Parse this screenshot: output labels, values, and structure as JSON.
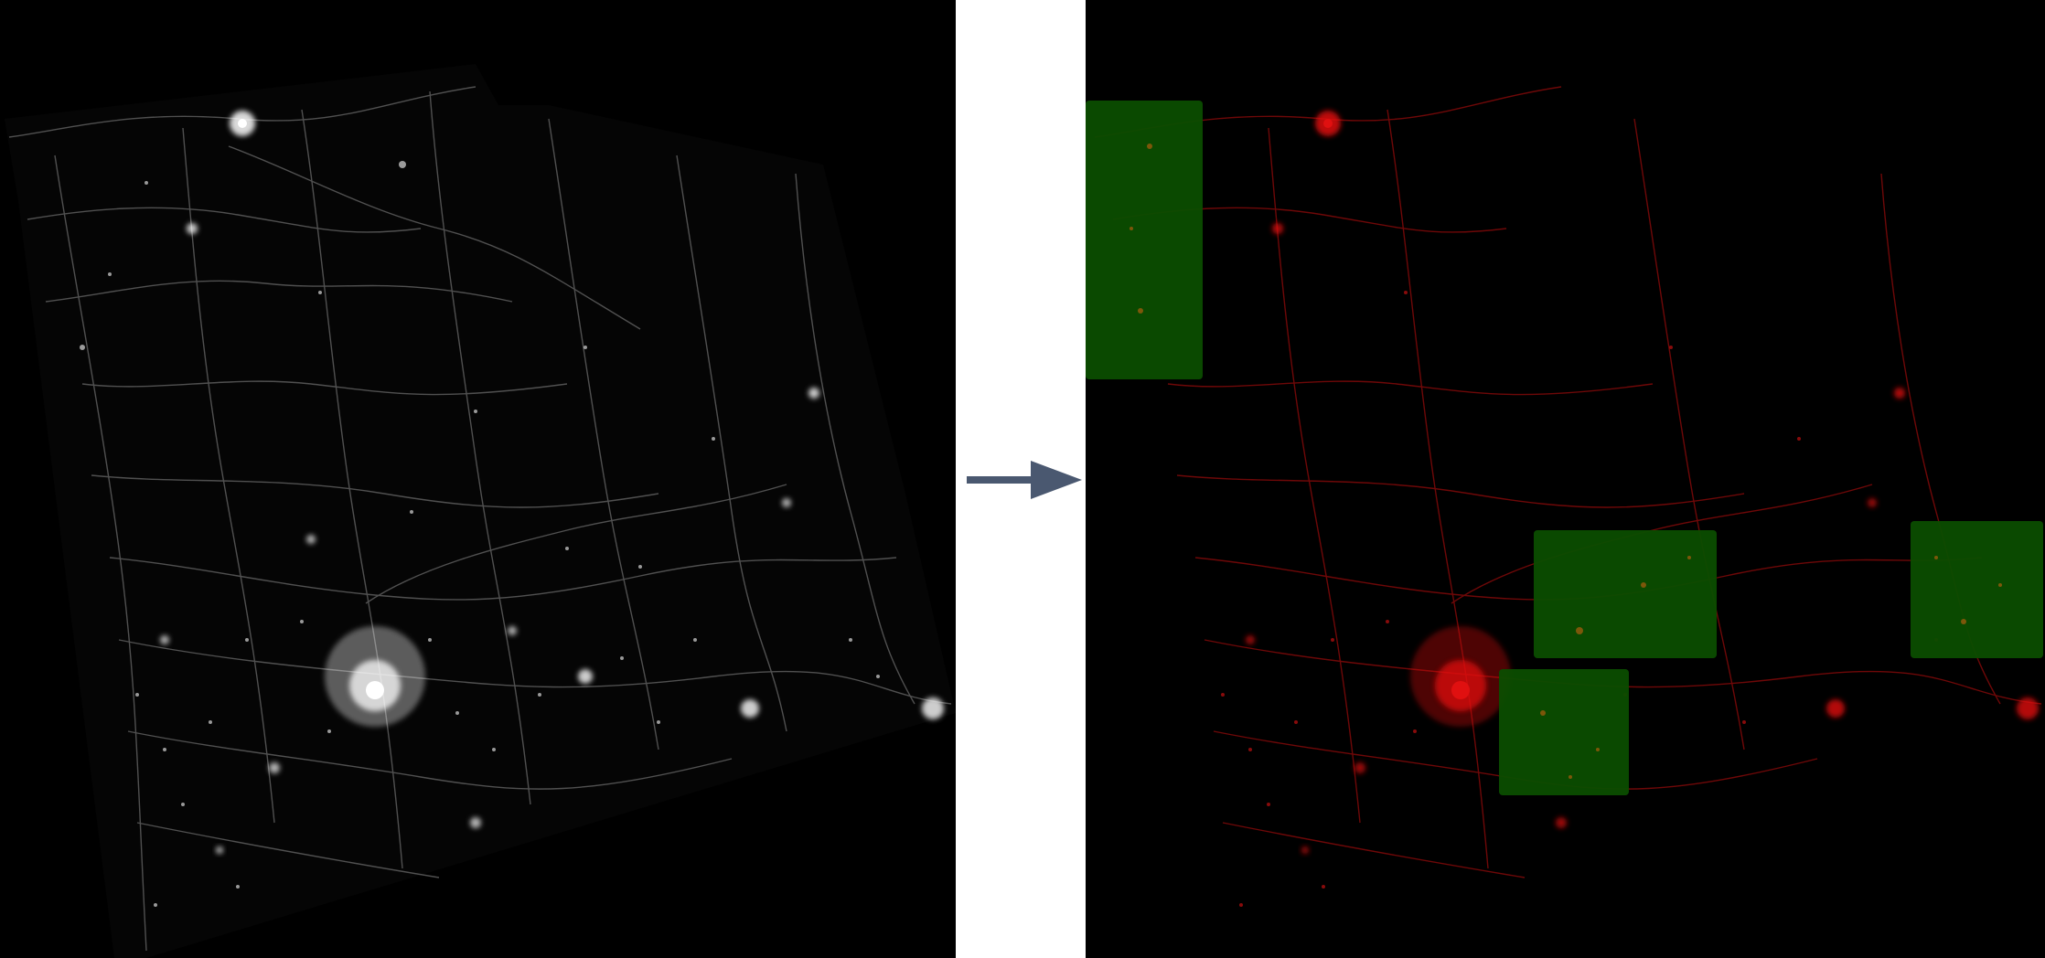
{
  "figure": {
    "input_panel": {
      "background_color": "#000000",
      "lights_color": "#ffffff"
    },
    "arrow": {
      "color": "#4a5870"
    },
    "output_panel": {
      "background_color": "#000000",
      "lights_color": "#e01010",
      "highlight_color": "#0b4d00",
      "highlight_regions_count": 4
    }
  }
}
